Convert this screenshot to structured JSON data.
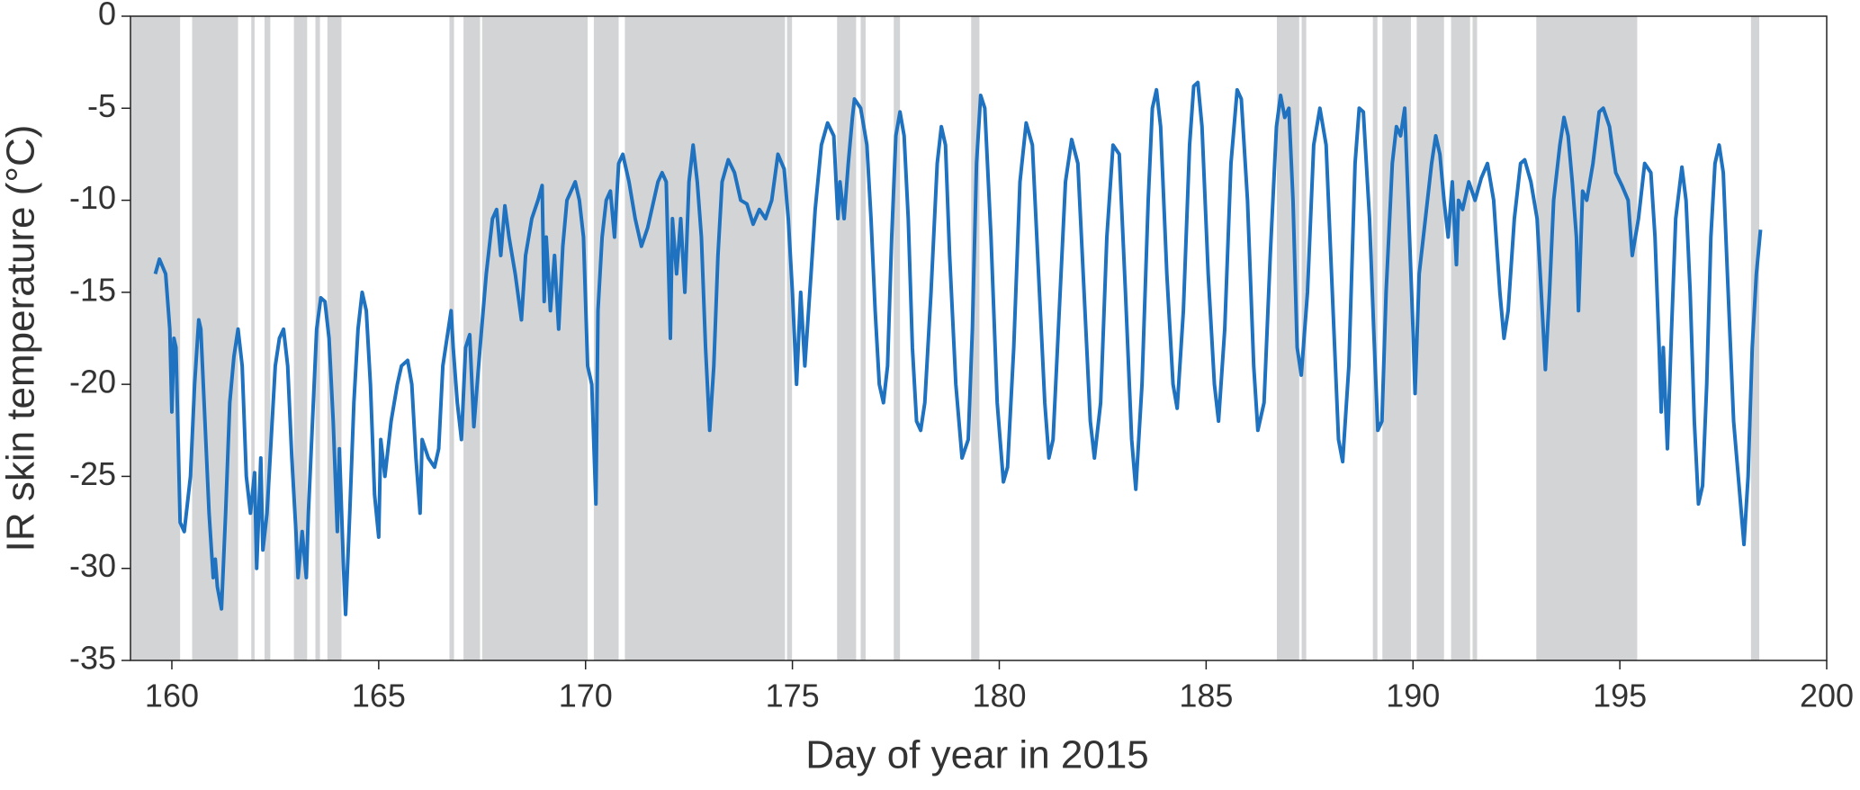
{
  "chart_data": {
    "type": "line",
    "xlabel": "Day of year in 2015",
    "ylabel": "IR skin temperature (°C)",
    "xlim": [
      159,
      200
    ],
    "xticks": [
      160,
      165,
      170,
      175,
      180,
      185,
      190,
      195,
      200
    ],
    "ylim": [
      -35,
      0
    ],
    "yticks": [
      -35,
      -30,
      -25,
      -20,
      -15,
      -10,
      -5,
      0
    ],
    "color": "#1f72bf",
    "shade_color": "#d3d4d6",
    "shaded_regions": [
      [
        159.0,
        160.2
      ],
      [
        160.49,
        161.6
      ],
      [
        161.92,
        162.0
      ],
      [
        162.24,
        162.38
      ],
      [
        162.95,
        163.27
      ],
      [
        163.47,
        163.58
      ],
      [
        163.76,
        164.1
      ],
      [
        166.71,
        166.82
      ],
      [
        167.05,
        167.45
      ],
      [
        167.5,
        170.05
      ],
      [
        170.2,
        170.8
      ],
      [
        170.95,
        174.82
      ],
      [
        174.87,
        174.99
      ],
      [
        176.08,
        176.54
      ],
      [
        176.65,
        176.77
      ],
      [
        177.45,
        177.6
      ],
      [
        179.32,
        179.52
      ],
      [
        186.71,
        187.25
      ],
      [
        187.31,
        187.42
      ],
      [
        189.03,
        189.14
      ],
      [
        189.26,
        189.95
      ],
      [
        190.09,
        190.75
      ],
      [
        190.92,
        191.38
      ],
      [
        191.44,
        191.55
      ],
      [
        192.98,
        195.42
      ],
      [
        198.17,
        198.37
      ]
    ],
    "x": [
      159.6,
      159.7,
      159.85,
      159.95,
      160.0,
      160.05,
      160.1,
      160.2,
      160.3,
      160.45,
      160.55,
      160.65,
      160.7,
      160.8,
      160.9,
      161.0,
      161.05,
      161.1,
      161.2,
      161.3,
      161.4,
      161.5,
      161.6,
      161.7,
      161.8,
      161.9,
      162.0,
      162.05,
      162.15,
      162.2,
      162.3,
      162.4,
      162.5,
      162.6,
      162.7,
      162.8,
      162.9,
      163.0,
      163.05,
      163.15,
      163.25,
      163.3,
      163.4,
      163.5,
      163.6,
      163.7,
      163.8,
      163.9,
      164.0,
      164.05,
      164.15,
      164.2,
      164.3,
      164.4,
      164.5,
      164.6,
      164.7,
      164.8,
      164.9,
      165.0,
      165.05,
      165.15,
      165.3,
      165.45,
      165.55,
      165.7,
      165.8,
      165.9,
      166.0,
      166.05,
      166.2,
      166.35,
      166.45,
      166.55,
      166.65,
      166.75,
      166.8,
      166.9,
      167.0,
      167.1,
      167.2,
      167.3,
      167.45,
      167.6,
      167.75,
      167.85,
      167.95,
      168.05,
      168.15,
      168.3,
      168.45,
      168.55,
      168.7,
      168.85,
      168.95,
      169.0,
      169.05,
      169.15,
      169.25,
      169.35,
      169.45,
      169.55,
      169.65,
      169.75,
      169.85,
      169.95,
      170.05,
      170.15,
      170.25,
      170.3,
      170.4,
      170.5,
      170.6,
      170.7,
      170.8,
      170.9,
      171.05,
      171.2,
      171.35,
      171.5,
      171.65,
      171.75,
      171.85,
      171.95,
      172.05,
      172.1,
      172.2,
      172.3,
      172.4,
      172.5,
      172.6,
      172.7,
      172.8,
      172.9,
      173.0,
      173.1,
      173.2,
      173.3,
      173.45,
      173.6,
      173.75,
      173.9,
      174.05,
      174.2,
      174.35,
      174.5,
      174.65,
      174.8,
      174.9,
      175.0,
      175.1,
      175.2,
      175.3,
      175.45,
      175.55,
      175.7,
      175.85,
      176.0,
      176.1,
      176.15,
      176.25,
      176.35,
      176.45,
      176.5,
      176.65,
      176.8,
      176.9,
      177.0,
      177.1,
      177.2,
      177.3,
      177.4,
      177.5,
      177.6,
      177.7,
      177.8,
      177.9,
      178.0,
      178.1,
      178.2,
      178.35,
      178.5,
      178.6,
      178.7,
      178.8,
      178.95,
      179.1,
      179.25,
      179.35,
      179.45,
      179.55,
      179.65,
      179.8,
      179.95,
      180.1,
      180.2,
      180.35,
      180.5,
      180.65,
      180.8,
      180.95,
      181.1,
      181.2,
      181.3,
      181.45,
      181.6,
      181.75,
      181.9,
      182.05,
      182.2,
      182.3,
      182.45,
      182.6,
      182.75,
      182.9,
      183.05,
      183.2,
      183.3,
      183.45,
      183.6,
      183.7,
      183.8,
      183.9,
      184.05,
      184.2,
      184.3,
      184.45,
      184.6,
      184.7,
      184.8,
      184.9,
      185.05,
      185.2,
      185.3,
      185.45,
      185.6,
      185.75,
      185.85,
      186.0,
      186.15,
      186.25,
      186.4,
      186.55,
      186.7,
      186.8,
      186.9,
      187.0,
      187.1,
      187.2,
      187.3,
      187.45,
      187.6,
      187.75,
      187.9,
      188.05,
      188.2,
      188.3,
      188.45,
      188.6,
      188.7,
      188.8,
      188.95,
      189.05,
      189.15,
      189.25,
      189.35,
      189.5,
      189.6,
      189.7,
      189.8,
      189.9,
      190.0,
      190.05,
      190.15,
      190.3,
      190.45,
      190.55,
      190.65,
      190.75,
      190.85,
      190.95,
      191.05,
      191.1,
      191.2,
      191.35,
      191.5,
      191.65,
      191.8,
      191.95,
      192.1,
      192.2,
      192.3,
      192.45,
      192.6,
      192.7,
      192.85,
      193.0,
      193.1,
      193.2,
      193.3,
      193.4,
      193.55,
      193.65,
      193.75,
      193.85,
      193.95,
      194.0,
      194.1,
      194.2,
      194.35,
      194.5,
      194.6,
      194.75,
      194.9,
      195.05,
      195.2,
      195.3,
      195.45,
      195.6,
      195.75,
      195.85,
      195.95,
      196.0,
      196.05,
      196.15,
      196.25,
      196.35,
      196.5,
      196.6,
      196.7,
      196.8,
      196.9,
      197.0,
      197.1,
      197.2,
      197.3,
      197.4,
      197.5,
      197.6,
      197.75,
      197.9,
      198.0,
      198.1,
      198.2,
      198.3,
      198.4
    ],
    "values": [
      -14,
      -13.2,
      -14,
      -17,
      -21.5,
      -17.5,
      -18,
      -27.5,
      -28,
      -25,
      -20,
      -16.5,
      -17,
      -22,
      -27,
      -30.5,
      -29.5,
      -31,
      -32.2,
      -27,
      -21,
      -18.5,
      -17,
      -19,
      -25,
      -27,
      -24.8,
      -30,
      -24,
      -29,
      -27,
      -23,
      -19,
      -17.5,
      -17,
      -19,
      -24,
      -28,
      -30.5,
      -28,
      -30.5,
      -27,
      -22,
      -17,
      -15.3,
      -15.5,
      -17.5,
      -22,
      -28,
      -23.5,
      -30,
      -32.5,
      -27,
      -21,
      -17,
      -15,
      -16,
      -20,
      -26,
      -28.3,
      -23,
      -25,
      -22,
      -20,
      -19,
      -18.7,
      -20,
      -24,
      -27,
      -23,
      -24,
      -24.5,
      -23.5,
      -19,
      -17.5,
      -16,
      -18,
      -21,
      -23,
      -18,
      -17.3,
      -22.3,
      -18,
      -14,
      -11,
      -10.5,
      -13,
      -10.3,
      -12,
      -14,
      -16.5,
      -13,
      -11,
      -10,
      -9.2,
      -15.5,
      -12,
      -16,
      -13,
      -17,
      -12.5,
      -10,
      -9.5,
      -9,
      -10,
      -12,
      -19,
      -20,
      -26.5,
      -16,
      -12,
      -10,
      -9.5,
      -12,
      -8,
      -7.5,
      -9,
      -11,
      -12.5,
      -11.5,
      -10,
      -9,
      -8.5,
      -9,
      -17.5,
      -11,
      -14,
      -11,
      -15,
      -9,
      -7,
      -9,
      -12,
      -18,
      -22.5,
      -19,
      -13,
      -9,
      -7.8,
      -8.5,
      -10,
      -10.2,
      -11.3,
      -10.5,
      -11,
      -10,
      -7.5,
      -8.3,
      -11,
      -15,
      -20,
      -15,
      -19,
      -14,
      -10.5,
      -7,
      -5.8,
      -6.5,
      -11,
      -9,
      -11,
      -8,
      -5.5,
      -4.5,
      -5,
      -7,
      -11,
      -16,
      -20,
      -21,
      -19,
      -12,
      -6.5,
      -5.2,
      -6.5,
      -11,
      -18,
      -22,
      -22.5,
      -21,
      -15,
      -8,
      -6,
      -7,
      -13,
      -20,
      -24,
      -23,
      -17,
      -8,
      -4.3,
      -5,
      -12,
      -21,
      -25.3,
      -24.5,
      -18,
      -9,
      -5.8,
      -7,
      -14,
      -21,
      -24,
      -23,
      -16,
      -9,
      -6.7,
      -8,
      -15,
      -22,
      -24,
      -21,
      -12,
      -7,
      -7.5,
      -15,
      -23,
      -25.7,
      -20,
      -10,
      -5,
      -4,
      -6,
      -14,
      -20,
      -21.3,
      -16,
      -7,
      -3.8,
      -3.6,
      -6,
      -14,
      -20,
      -22,
      -17,
      -8,
      -4,
      -4.5,
      -10,
      -19,
      -22.5,
      -21,
      -13,
      -6,
      -4.3,
      -5.5,
      -5,
      -10,
      -18,
      -19.5,
      -15,
      -7,
      -5,
      -7,
      -15,
      -23,
      -24.2,
      -19,
      -8,
      -5,
      -5.2,
      -11,
      -17,
      -22.5,
      -22,
      -15,
      -8,
      -6,
      -6.5,
      -5,
      -11,
      -17,
      -20.5,
      -14,
      -11,
      -8,
      -6.5,
      -7.5,
      -10,
      -12,
      -9,
      -13.5,
      -10,
      -10.5,
      -9,
      -10,
      -8.8,
      -8,
      -10,
      -15,
      -17.5,
      -16,
      -11,
      -8,
      -7.8,
      -9,
      -11,
      -15,
      -19.2,
      -15,
      -10,
      -7,
      -5.5,
      -6.5,
      -9,
      -12,
      -16,
      -9.5,
      -10,
      -8,
      -5.2,
      -5,
      -6,
      -8.5,
      -9.2,
      -10,
      -13,
      -11,
      -8,
      -8.5,
      -12,
      -18,
      -21.5,
      -18,
      -23.5,
      -17,
      -11,
      -8.2,
      -10,
      -15,
      -22,
      -26.5,
      -25.5,
      -20,
      -12,
      -8,
      -7,
      -8.5,
      -14,
      -22,
      -26,
      -28.7,
      -25,
      -18,
      -14,
      -11.6
    ]
  }
}
